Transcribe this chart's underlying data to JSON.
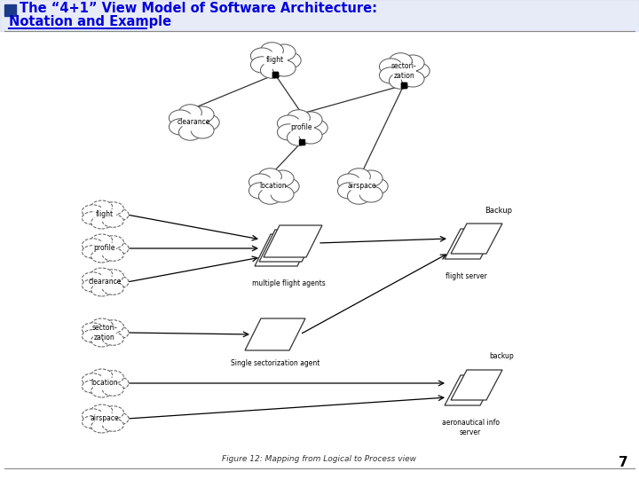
{
  "title_line1": "The “4+1” View Model of Software Architecture:",
  "title_line2": "Notation and Example",
  "bg_color": "#ffffff",
  "title_color": "#0000dd",
  "slide_number": "7",
  "figure_caption": "Figure 12: Mapping from Logical to Process view"
}
